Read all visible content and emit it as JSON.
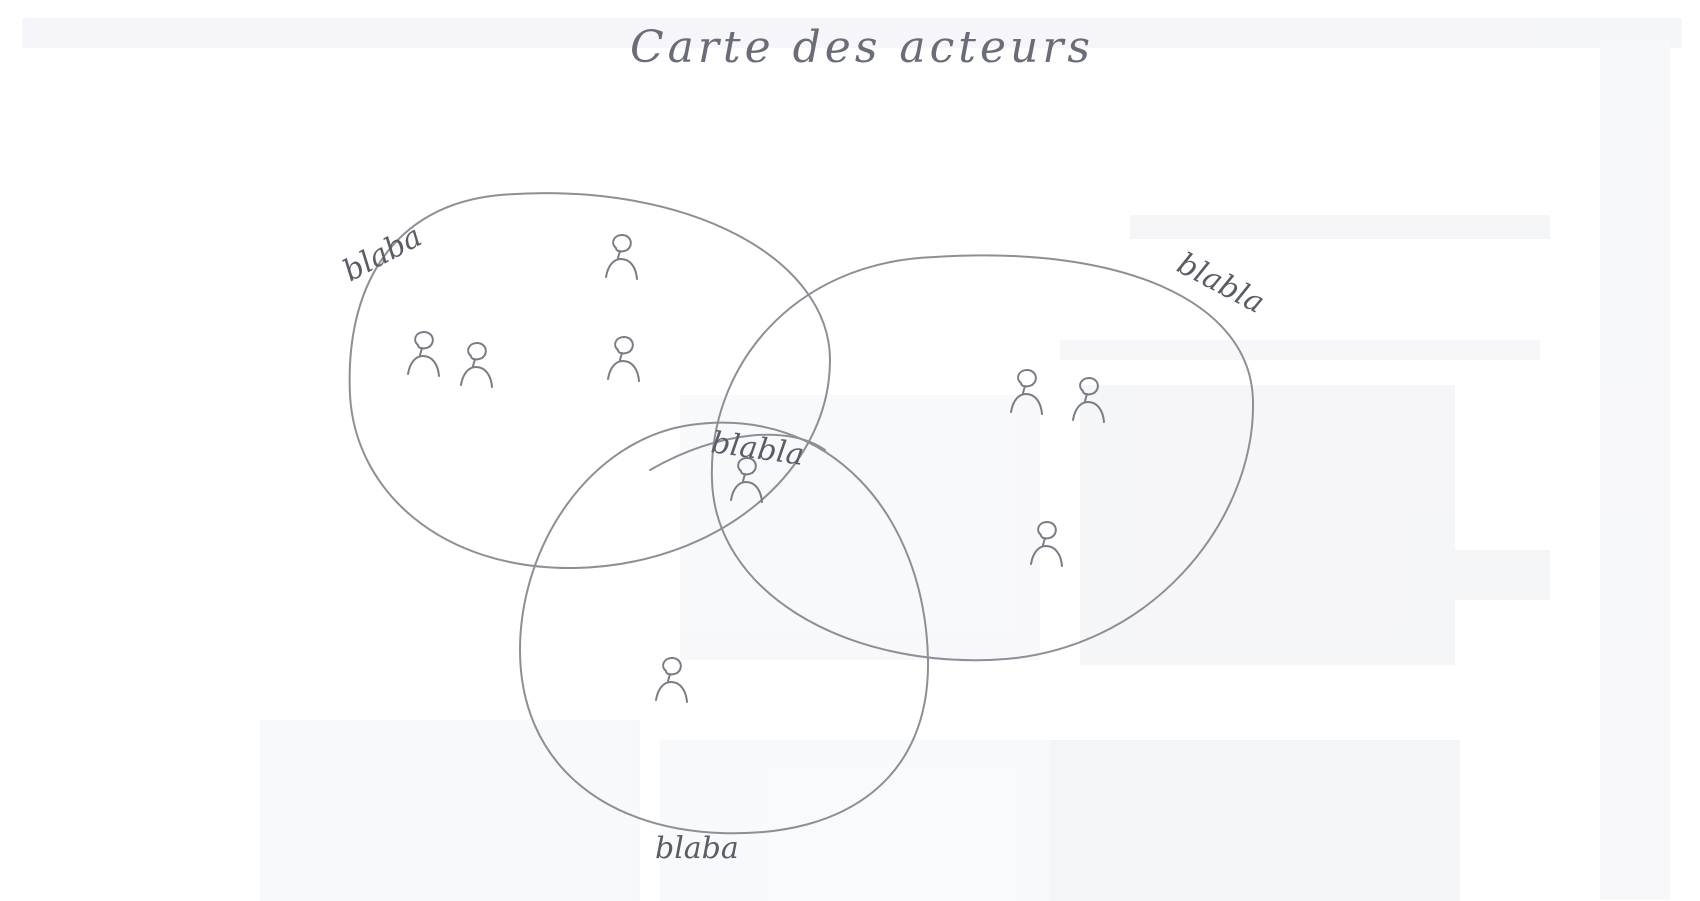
{
  "title": "Carte des acteurs",
  "groups": [
    {
      "id": "left",
      "label": "blaba",
      "actors": 4
    },
    {
      "id": "right",
      "label": "blabla",
      "actors": 3
    },
    {
      "id": "bottom",
      "label": "blaba",
      "actors": 1
    },
    {
      "id": "overlap",
      "label": "blabla",
      "actors": 1
    }
  ],
  "ink_color": "#8d8f96",
  "background_color": "#ffffff",
  "actor_icon": "person-icon"
}
